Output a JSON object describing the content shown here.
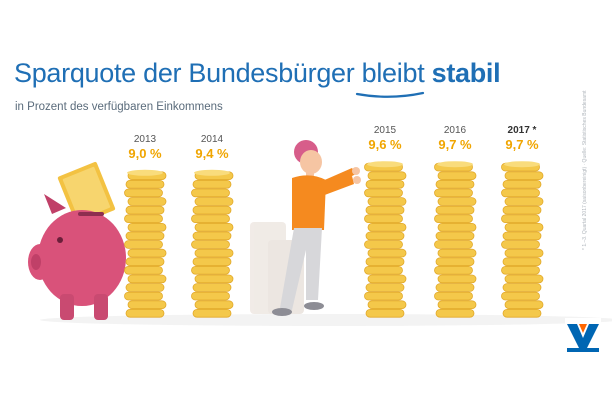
{
  "header": {
    "title_main": "Sparquote der Bundesbürger bleibt",
    "title_accent": "stabil",
    "subtitle": "in Prozent des verfügbaren Einkommens"
  },
  "chart_data": {
    "type": "bar",
    "title": "Sparquote der Bundesbürger bleibt stabil",
    "subtitle": "in Prozent des verfügbaren Einkommens",
    "categories": [
      "2013",
      "2014",
      "2015",
      "2016",
      "2017 *"
    ],
    "values": [
      9.0,
      9.4,
      9.6,
      9.7,
      9.7
    ],
    "value_labels": [
      "9,0 %",
      "9,4 %",
      "9,6 %",
      "9,7 %",
      "9,7 %"
    ],
    "unit": "%",
    "ylim": [
      0,
      10
    ],
    "grid": false,
    "legend": "none",
    "coin_color": "#f4c84a",
    "value_color": "#f0a500"
  },
  "footer": {
    "source": "* 1.–3. Quartal 2017 (saisonbereinigt) · Quelle: Statistisches Bundesamt"
  },
  "colors": {
    "title": "#1f6fb5",
    "piggy": "#d9527a",
    "shirt": "#f58a1f",
    "logo_blue": "#0066b3",
    "logo_orange": "#ff6600"
  }
}
